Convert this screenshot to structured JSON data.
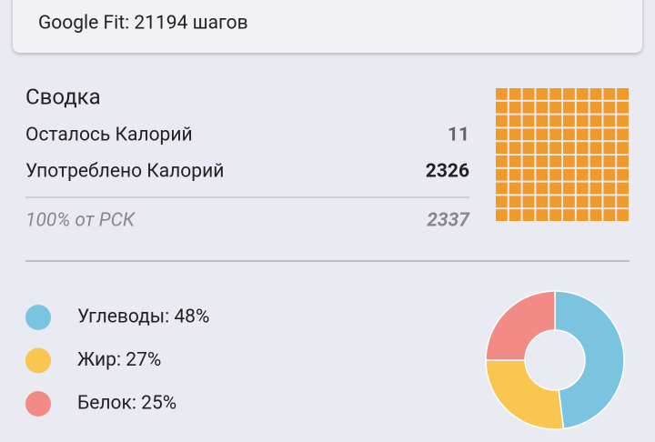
{
  "header": {
    "text": "Google Fit: 21194 шагов"
  },
  "summary": {
    "title": "Сводка",
    "rows": [
      {
        "label": "Осталось Калорий",
        "value": "11"
      },
      {
        "label": "Употреблено Калорий",
        "value": "2326"
      },
      {
        "label": "100% от РСК",
        "value": "2337"
      }
    ]
  },
  "waffle": {
    "cells": 100,
    "filled": 100,
    "color": "#f09a2b"
  },
  "macros": {
    "type": "pie",
    "items": [
      {
        "label": "Углеводы: 48%",
        "value": 48,
        "color": "#7bc4df"
      },
      {
        "label": "Жир: 27%",
        "value": 27,
        "color": "#f8c651"
      },
      {
        "label": "Белок: 25%",
        "value": 25,
        "color": "#f28b86"
      }
    ]
  }
}
